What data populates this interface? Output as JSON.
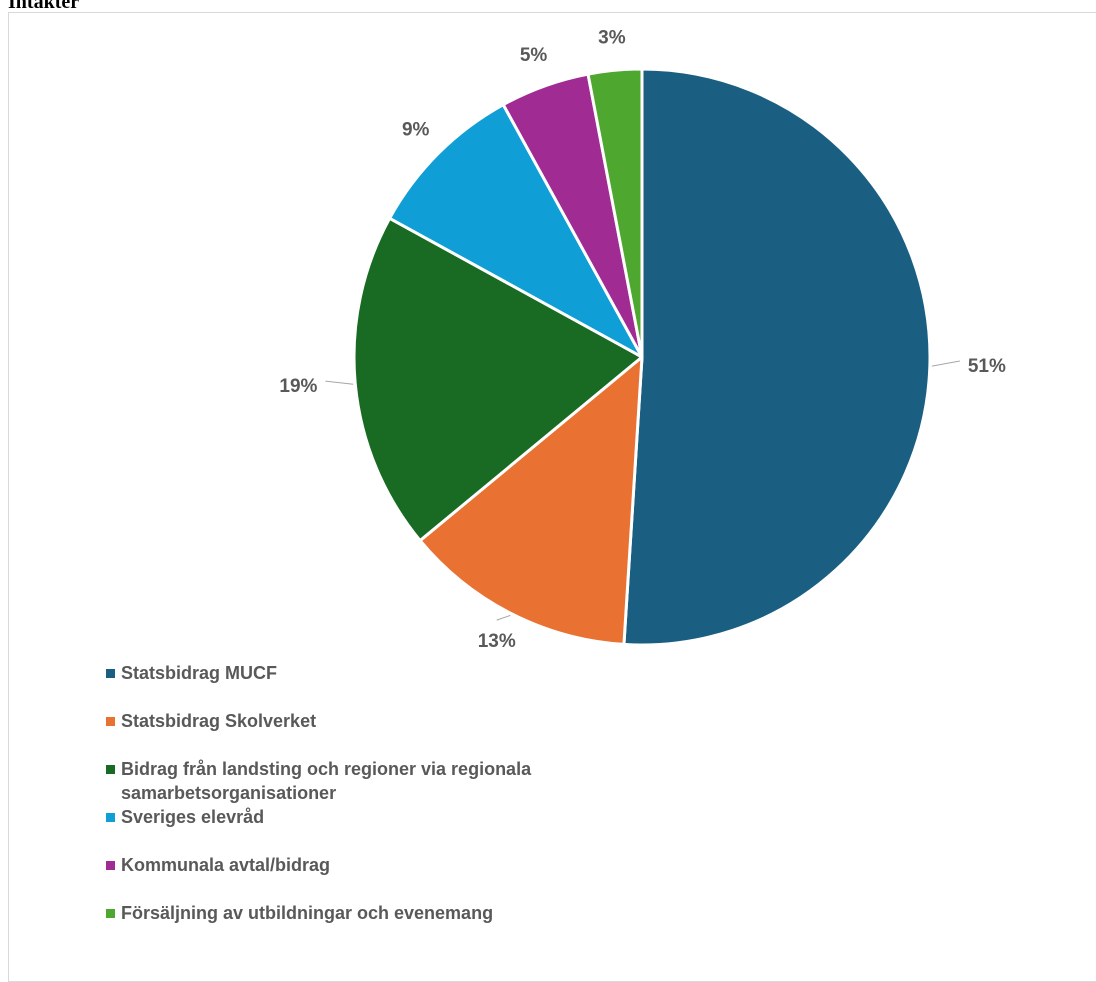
{
  "page": {
    "title": "Intäkter"
  },
  "chart_data": {
    "type": "pie",
    "title": "",
    "categories": [
      "Statsbidrag MUCF",
      "Statsbidrag Skolverket",
      "Bidrag från landsting och regioner via regionala samarbetsorganisationer",
      "Sveriges elevråd",
      "Kommunala avtal/bidrag",
      "Försäljning av utbildningar och evenemang"
    ],
    "values": [
      51,
      13,
      19,
      9,
      5,
      3
    ],
    "labels": [
      "51%",
      "13%",
      "19%",
      "9%",
      "5%",
      "3%"
    ],
    "colors": [
      "#1a5f82",
      "#e97132",
      "#196b24",
      "#0f9ed5",
      "#a02b93",
      "#4ea72e"
    ],
    "legend_position": "bottom-left",
    "unit": "%"
  }
}
